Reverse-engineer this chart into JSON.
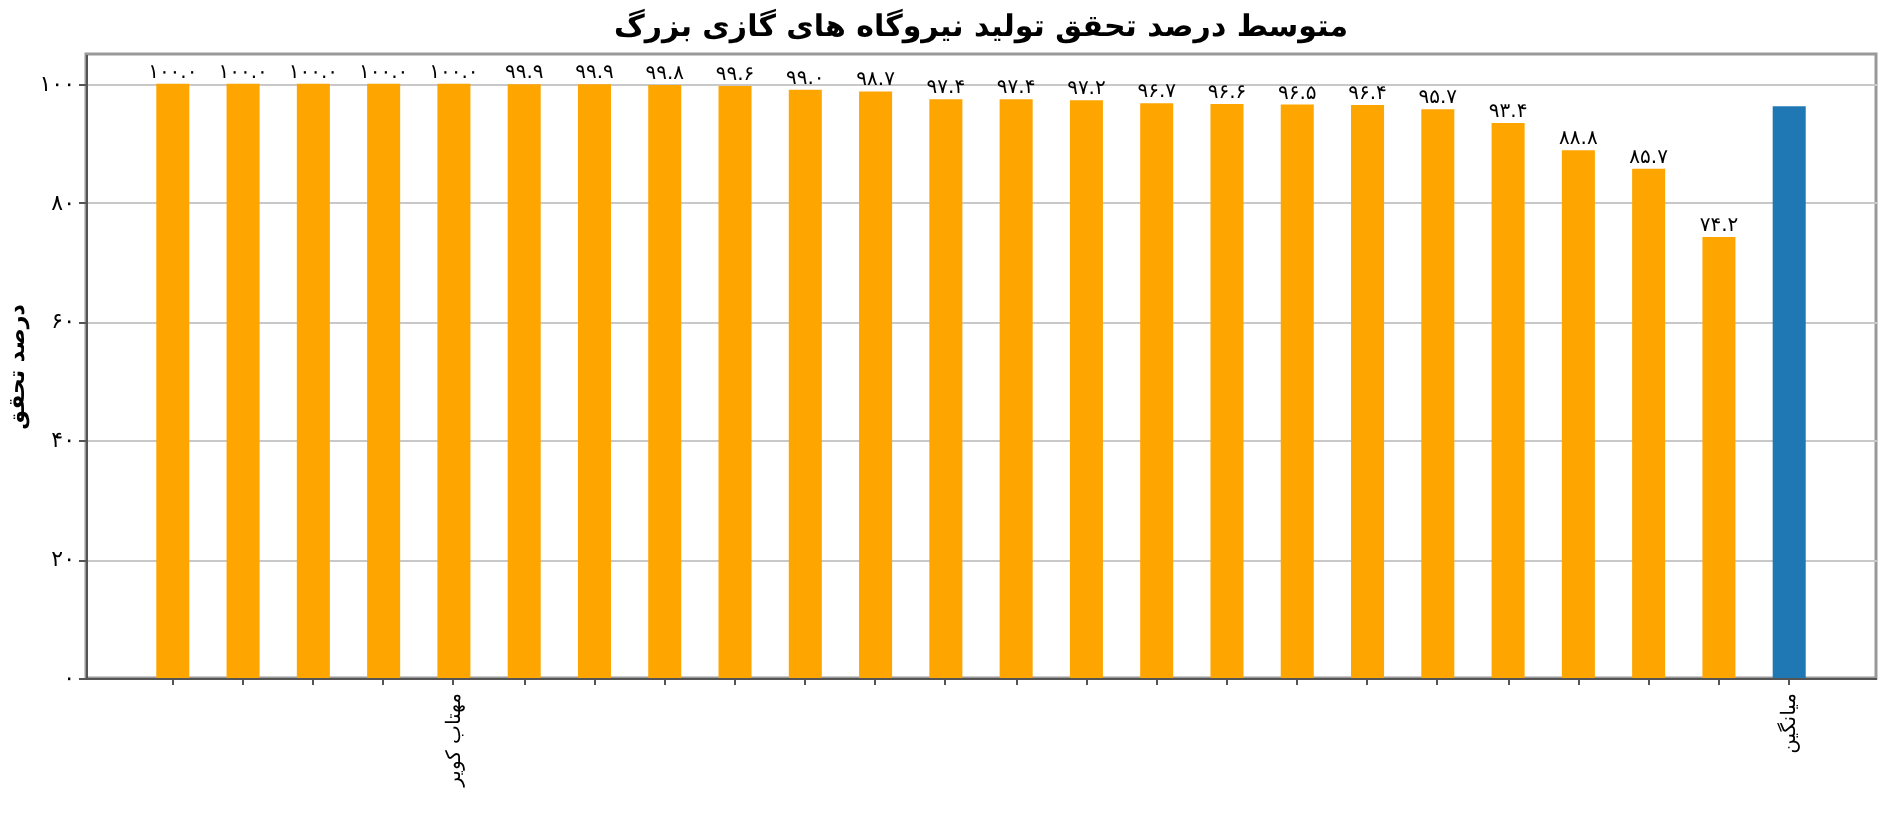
{
  "chart_data": {
    "type": "bar",
    "title": "متوسط درصد تحقق تولید نیروگاه های گازی بزرگ",
    "ylabel": "درصد تحقق",
    "categories": [
      null,
      null,
      null,
      null,
      "مهتاب کویر",
      null,
      null,
      null,
      null,
      null,
      null,
      null,
      null,
      null,
      null,
      null,
      null,
      null,
      null,
      null,
      null,
      null,
      null,
      "میانگین"
    ],
    "values": [
      100.0,
      100.0,
      100.0,
      100.0,
      100.0,
      99.9,
      99.9,
      99.8,
      99.6,
      99.0,
      98.7,
      97.4,
      97.4,
      97.2,
      96.7,
      96.6,
      96.5,
      96.4,
      95.7,
      93.4,
      88.8,
      85.7,
      74.2,
      96.2
    ],
    "colors": [
      "#ffa500",
      "#ffa500",
      "#ffa500",
      "#ffa500",
      "#ffa500",
      "#ffa500",
      "#ffa500",
      "#ffa500",
      "#ffa500",
      "#ffa500",
      "#ffa500",
      "#ffa500",
      "#ffa500",
      "#ffa500",
      "#ffa500",
      "#ffa500",
      "#ffa500",
      "#ffa500",
      "#ffa500",
      "#ffa500",
      "#ffa500",
      "#ffa500",
      "#ffa500",
      "#1f77b4"
    ],
    "value_labels": [
      "۱۰۰.۰",
      "۱۰۰.۰",
      "۱۰۰.۰",
      "۱۰۰.۰",
      "۱۰۰.۰",
      "۹۹.۹",
      "۹۹.۹",
      "۹۹.۸",
      "۹۹.۶",
      "۹۹.۰",
      "۹۸.۷",
      "۹۷.۴",
      "۹۷.۴",
      "۹۷.۲",
      "۹۶.۷",
      "۹۶.۶",
      "۹۶.۵",
      "۹۶.۴",
      "۹۵.۷",
      "۹۳.۴",
      "۸۸.۸",
      "۸۵.۷",
      "۷۴.۲",
      null
    ],
    "ylim": [
      0,
      105
    ],
    "yticks": [
      {
        "value": 0,
        "label": "۰"
      },
      {
        "value": 20,
        "label": "۲۰"
      },
      {
        "value": 40,
        "label": "۴۰"
      },
      {
        "value": 60,
        "label": "۶۰"
      },
      {
        "value": 80,
        "label": "۸۰"
      },
      {
        "value": 100,
        "label": "۱۰۰"
      }
    ],
    "grid": "y"
  }
}
